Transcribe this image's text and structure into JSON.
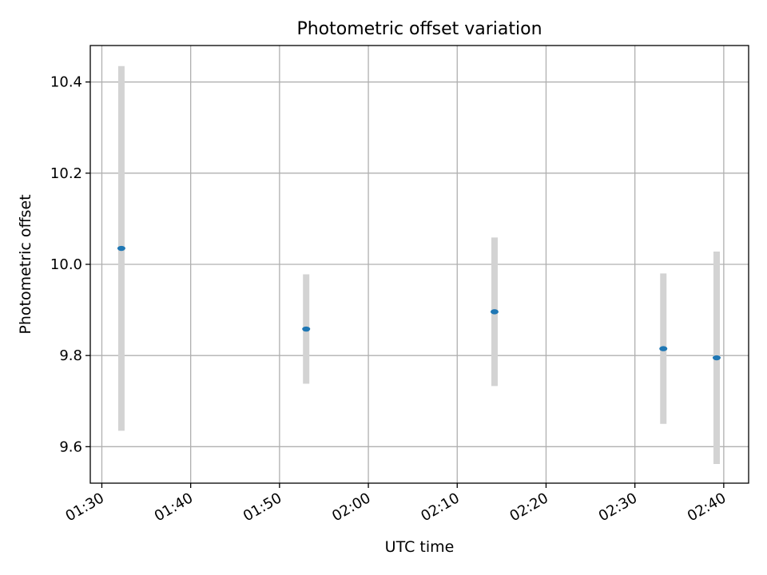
{
  "chart_data": {
    "type": "scatter",
    "title": "Photometric offset variation",
    "xlabel": "UTC time",
    "ylabel": "Photometric offset",
    "x_ticks": [
      "01:30",
      "01:40",
      "01:50",
      "02:00",
      "02:10",
      "02:20",
      "02:30",
      "02:40"
    ],
    "y_ticks": [
      "9.6",
      "9.8",
      "10.0",
      "10.2",
      "10.4"
    ],
    "xlim": [
      "01:28.7",
      "02:42.8"
    ],
    "ylim": [
      9.52,
      10.48
    ],
    "grid": true,
    "errorbar_color": "#d3d3d3",
    "point_color": "#1f77b4",
    "points": [
      {
        "x": "01:32.2",
        "y": 10.035,
        "err": 0.4
      },
      {
        "x": "01:53.0",
        "y": 9.858,
        "err": 0.12
      },
      {
        "x": "02:14.2",
        "y": 9.896,
        "err": 0.163
      },
      {
        "x": "02:33.2",
        "y": 9.815,
        "err": 0.165
      },
      {
        "x": "02:39.2",
        "y": 9.795,
        "err": 0.233
      }
    ]
  }
}
